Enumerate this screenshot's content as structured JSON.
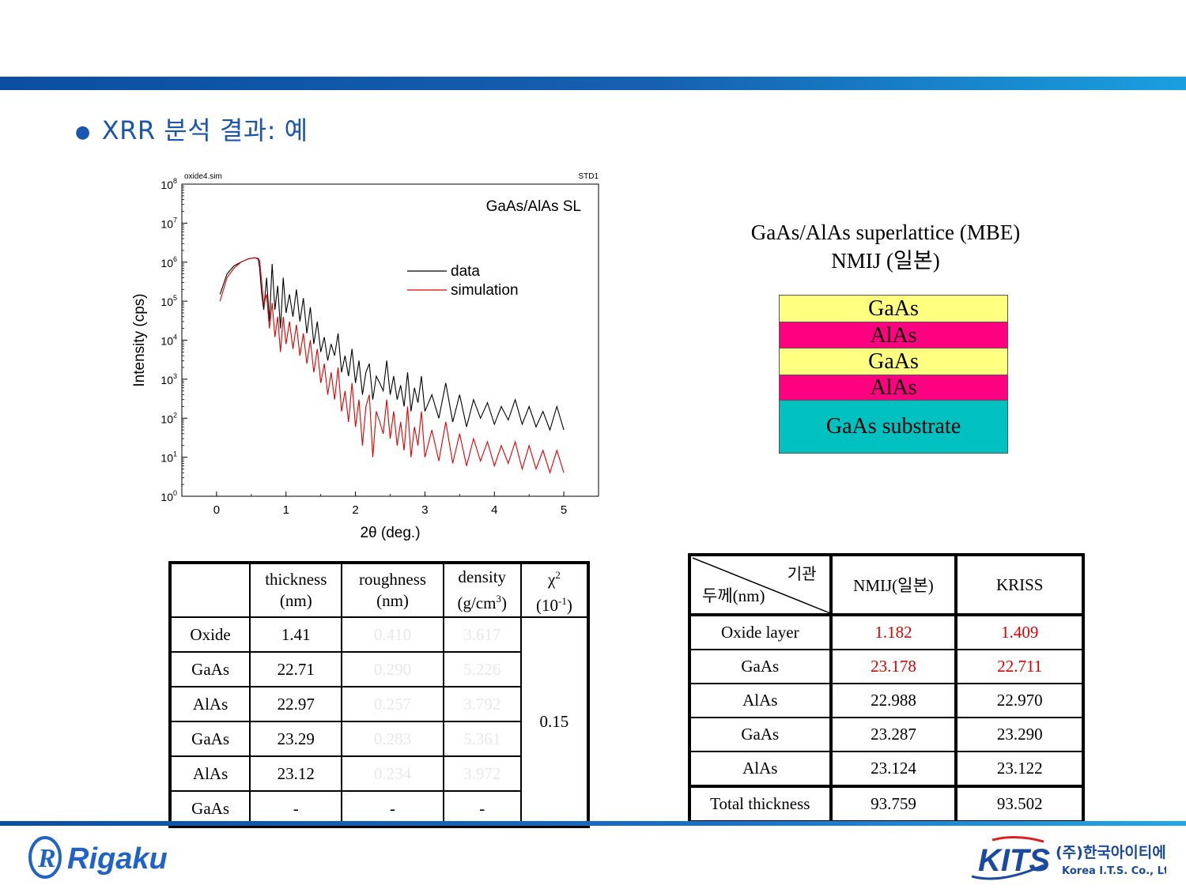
{
  "slide": {
    "title": "XRR 분석 결과: 예"
  },
  "chart_data": {
    "type": "line",
    "title": "GaAs/AlAs SL",
    "top_left_label": "oxide4.sim",
    "top_right_label": "STD1",
    "xlabel": "2θ (deg.)",
    "ylabel": "Intensity (cps)",
    "xlim": [
      -0.5,
      5.5
    ],
    "ylim": [
      1,
      100000000
    ],
    "yscale": "log",
    "xticks": [
      "0",
      "1",
      "2",
      "3",
      "4",
      "5"
    ],
    "yticks": [
      {
        "base": "10",
        "exp": "0"
      },
      {
        "base": "10",
        "exp": "1"
      },
      {
        "base": "10",
        "exp": "2"
      },
      {
        "base": "10",
        "exp": "3"
      },
      {
        "base": "10",
        "exp": "4"
      },
      {
        "base": "10",
        "exp": "5"
      },
      {
        "base": "10",
        "exp": "6"
      },
      {
        "base": "10",
        "exp": "7"
      },
      {
        "base": "10",
        "exp": "8"
      }
    ],
    "legend_position": "upper-right",
    "series": [
      {
        "name": "data",
        "color": "#000000",
        "x": [
          0.05,
          0.15,
          0.25,
          0.35,
          0.45,
          0.55,
          0.6,
          0.62,
          0.65,
          0.68,
          0.72,
          0.76,
          0.8,
          0.84,
          0.88,
          0.92,
          0.96,
          1.0,
          1.05,
          1.1,
          1.15,
          1.2,
          1.25,
          1.3,
          1.35,
          1.4,
          1.45,
          1.5,
          1.55,
          1.6,
          1.65,
          1.7,
          1.75,
          1.8,
          1.85,
          1.9,
          1.95,
          2.0,
          2.05,
          2.1,
          2.15,
          2.2,
          2.25,
          2.3,
          2.35,
          2.4,
          2.45,
          2.5,
          2.55,
          2.6,
          2.65,
          2.7,
          2.75,
          2.8,
          2.85,
          2.9,
          2.95,
          3.0,
          3.1,
          3.2,
          3.3,
          3.4,
          3.5,
          3.6,
          3.7,
          3.8,
          3.9,
          4.0,
          4.1,
          4.2,
          4.3,
          4.4,
          4.5,
          4.6,
          4.7,
          4.8,
          4.9,
          5.0
        ],
        "y": [
          150000,
          500000,
          800000,
          1000000,
          1200000,
          1300000,
          1200000,
          700000,
          150000,
          60000,
          400000,
          30000,
          900000,
          60000,
          250000,
          20000,
          400000,
          50000,
          150000,
          40000,
          200000,
          30000,
          120000,
          15000,
          70000,
          8000,
          30000,
          5000,
          12000,
          3000,
          8000,
          4000,
          15000,
          1500,
          4000,
          1200,
          6000,
          800,
          3000,
          400,
          1500,
          2500,
          300,
          1200,
          800,
          500,
          3000,
          400,
          1200,
          300,
          700,
          200,
          1500,
          150,
          600,
          250,
          1200,
          150,
          400,
          100,
          800,
          80,
          400,
          60,
          300,
          100,
          250,
          70,
          200,
          90,
          300,
          70,
          200,
          60,
          150,
          50,
          200,
          50
        ]
      },
      {
        "name": "simulation",
        "color": "#e00000",
        "x": [
          0.05,
          0.15,
          0.25,
          0.35,
          0.45,
          0.55,
          0.6,
          0.62,
          0.65,
          0.68,
          0.72,
          0.76,
          0.8,
          0.84,
          0.88,
          0.92,
          0.96,
          1.0,
          1.05,
          1.1,
          1.15,
          1.2,
          1.25,
          1.3,
          1.35,
          1.4,
          1.45,
          1.5,
          1.55,
          1.6,
          1.65,
          1.7,
          1.75,
          1.8,
          1.85,
          1.9,
          1.95,
          2.0,
          2.05,
          2.1,
          2.15,
          2.2,
          2.25,
          2.3,
          2.35,
          2.4,
          2.45,
          2.5,
          2.55,
          2.6,
          2.65,
          2.7,
          2.75,
          2.8,
          2.85,
          2.9,
          2.95,
          3.0,
          3.1,
          3.2,
          3.3,
          3.4,
          3.5,
          3.6,
          3.7,
          3.8,
          3.9,
          4.0,
          4.1,
          4.2,
          4.3,
          4.4,
          4.5,
          4.6,
          4.7,
          4.8,
          4.9,
          5.0
        ],
        "y": [
          100000,
          400000,
          700000,
          1000000,
          1200000,
          1300000,
          1250000,
          1100000,
          300000,
          80000,
          150000,
          20000,
          90000,
          12000,
          40000,
          5000,
          40000,
          8000,
          30000,
          6000,
          25000,
          4000,
          15000,
          2500,
          10000,
          1500,
          6000,
          800,
          2500,
          400,
          1500,
          300,
          2000,
          150,
          500,
          80,
          800,
          60,
          300,
          20,
          200,
          400,
          10,
          150,
          80,
          40,
          300,
          30,
          150,
          20,
          80,
          15,
          200,
          10,
          60,
          20,
          150,
          10,
          50,
          8,
          80,
          7,
          40,
          6,
          30,
          8,
          25,
          6,
          20,
          7,
          25,
          5,
          20,
          5,
          15,
          4,
          15,
          4
        ]
      }
    ]
  },
  "structure": {
    "title_line1": "GaAs/AlAs superlattice (MBE)",
    "title_line2": "NMIJ (일본)",
    "layers": [
      {
        "name": "GaAs",
        "color": "#ffff80"
      },
      {
        "name": "AlAs",
        "color": "#ff0080"
      },
      {
        "name": "GaAs",
        "color": "#ffff80"
      },
      {
        "name": "AlAs",
        "color": "#ff0080"
      },
      {
        "name": "GaAs substrate",
        "color": "#00c0c0"
      }
    ]
  },
  "fit_table": {
    "headers": {
      "thickness_1": "thickness",
      "thickness_2": "(nm)",
      "roughness_1": "roughness",
      "roughness_2": "(nm)",
      "density_1": "density",
      "density_2a": "(g/cm",
      "density_sup": "3",
      "density_2b": ")",
      "chi_1": "χ",
      "chi_sup": "2",
      "chi_2a": "(10",
      "chi_2sup": "-1",
      "chi_2b": ")"
    },
    "rows": [
      {
        "layer": "Oxide",
        "thickness": "1.41",
        "roughness": "0.410",
        "density": "3.617"
      },
      {
        "layer": "GaAs",
        "thickness": "22.71",
        "roughness": "0.290",
        "density": "5.226"
      },
      {
        "layer": "AlAs",
        "thickness": "22.97",
        "roughness": "0.257",
        "density": "3.792"
      },
      {
        "layer": "GaAs",
        "thickness": "23.29",
        "roughness": "0.283",
        "density": "5.361"
      },
      {
        "layer": "AlAs",
        "thickness": "23.12",
        "roughness": "0.234",
        "density": "3.972"
      },
      {
        "layer": "GaAs",
        "thickness": "-",
        "roughness": "-",
        "density": "-"
      }
    ],
    "chi2_value": "0.15"
  },
  "compare_table": {
    "corner_top": "기관",
    "corner_bottom": "두께(nm)",
    "col1": "NMIJ(일본)",
    "col2": "KRISS",
    "rows": [
      {
        "label": "Oxide layer",
        "nmij": "1.182",
        "kriss": "1.409",
        "highlight": true
      },
      {
        "label": "GaAs",
        "nmij": "23.178",
        "kriss": "22.711",
        "highlight": true
      },
      {
        "label": "AlAs",
        "nmij": "22.988",
        "kriss": "22.970",
        "highlight": false
      },
      {
        "label": "GaAs",
        "nmij": "23.287",
        "kriss": "23.290",
        "highlight": false
      },
      {
        "label": "AlAs",
        "nmij": "23.124",
        "kriss": "23.122",
        "highlight": false
      }
    ],
    "total_label": "Total thickness",
    "total_nmij": "93.759",
    "total_kriss": "93.502"
  },
  "logos": {
    "rigaku": "Rigaku",
    "kits": "KITS",
    "kits_korean": "(주)한국아이티에스",
    "kits_english": "Korea I.T.S. Co., Ltd."
  }
}
